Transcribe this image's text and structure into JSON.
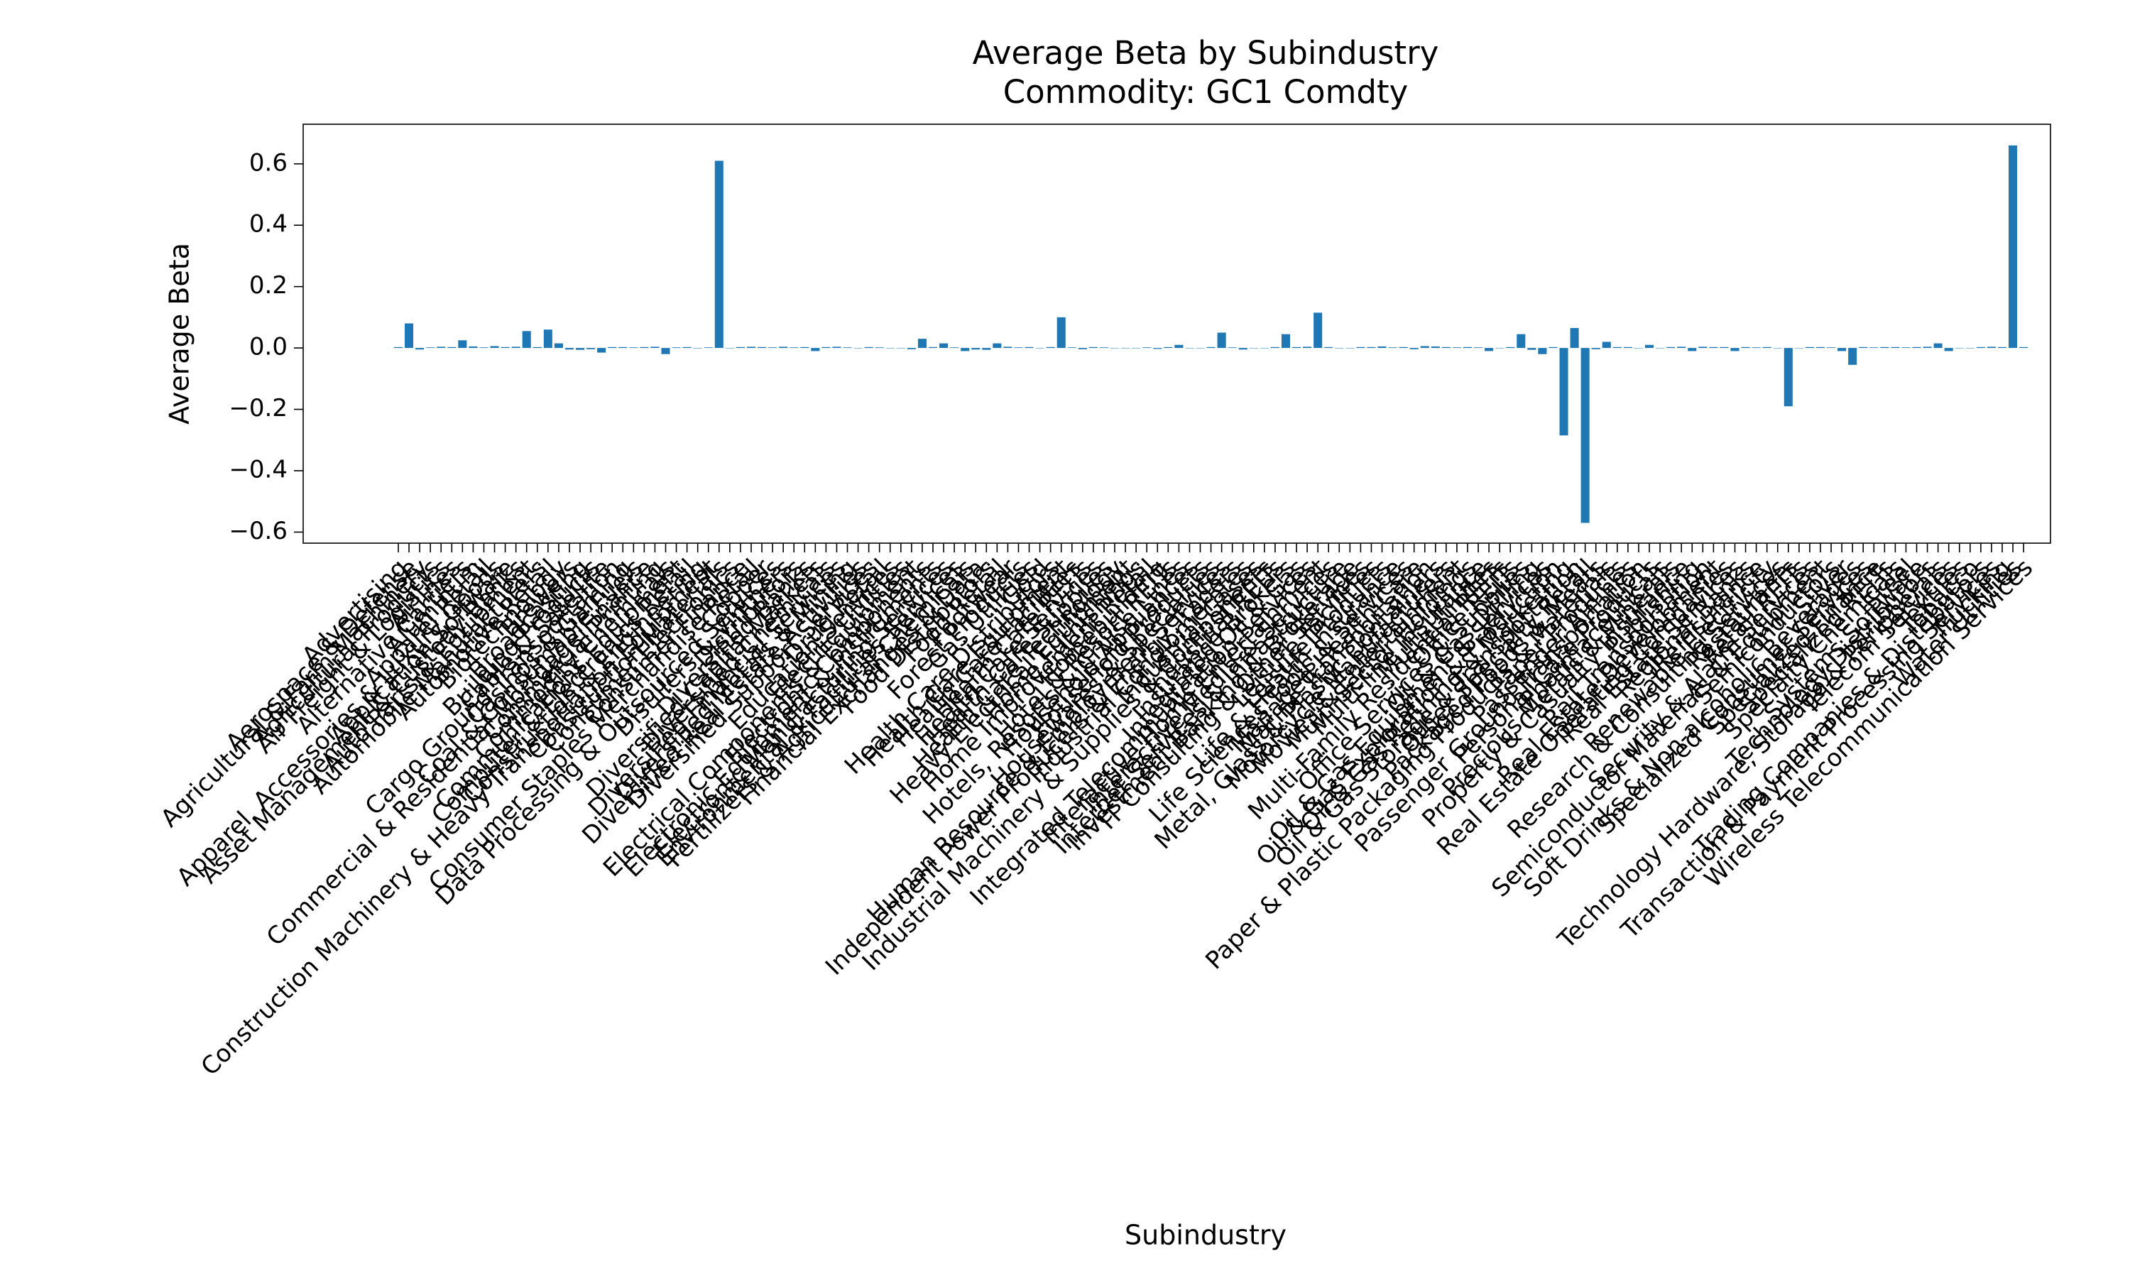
{
  "chart_data": {
    "type": "bar",
    "title": "Average Beta by Subindustry",
    "subtitle": "Commodity: GC1 Comdty",
    "x_label": "Subindustry",
    "y_label": "Average Beta",
    "color": "#1f77b4",
    "ylim": [
      -0.636,
      0.729
    ],
    "yticks": [
      {
        "value": -0.6,
        "label": "−0.6"
      },
      {
        "value": -0.4,
        "label": "−0.4"
      },
      {
        "value": -0.2,
        "label": "−0.2"
      },
      {
        "value": 0,
        "label": "0.0"
      },
      0.2,
      0.4,
      0.6
    ],
    "categories": [
      "Advertising",
      "Aerospace & Defense",
      "Agricultural & Farm Machinery",
      "Agricultural Products",
      "Air Freight & Logistics",
      "Airlines",
      "Alternative Carriers",
      "Aluminum",
      "Apparel Retail",
      "Apparel, Accessories & Luxury Goods",
      "Application Software",
      "Asset Management & Custody Banks",
      "Auto Parts & Equipment",
      "Automobile Manufacturers",
      "Automotive Retail",
      "Biotechnology",
      "Brewers",
      "Broadcasting",
      "Building Products",
      "Cable & Satellite",
      "Cargo Ground Transportation",
      "Casinos & Gaming",
      "Coal & Consumable Fuels",
      "Commercial & Residential Mortgage Finance",
      "Commercial Printing",
      "Commodity Chemicals",
      "Communications Equipment",
      "Computer & Electronics Retail",
      "Construction & Engineering",
      "Construction Machinery & Heavy Transportation Equipment",
      "Construction Materials",
      "Consumer Electronics",
      "Consumer Finance",
      "Consumer Staples Merchandise Retail",
      "Copper",
      "Data Processing & Outsourced Services",
      "Distillers & Vintners",
      "Distributors",
      "Diversified Banks",
      "Diversified Capital Markets",
      "Diversified Chemicals",
      "Diversified Financial Services",
      "Diversified Metals & Mining",
      "Diversified Real Estate Activities",
      "Diversified Support Services",
      "Drug Retail",
      "Education Services",
      "Electric Utilities",
      "Electrical Components & Equipment",
      "Electronic Components",
      "Electronic Equipment & Instruments",
      "Electronic Manufacturing Services",
      "Environmental & Facilities Services",
      "Fertilizers & Agricultural Chemicals",
      "Financial Exchanges & Data",
      "Food Distributors",
      "Food Retail",
      "Footwear",
      "Forest Products",
      "Gas Utilities",
      "Gold",
      "Health Care Distributors",
      "Health Care Equipment",
      "Health Care Facilities",
      "Health Care REITs",
      "Health Care Services",
      "Health Care Supplies",
      "Health Care Technology",
      "Heavy Electrical Equipment",
      "Home Furnishings",
      "Home Improvement Retail",
      "Homebuilding",
      "Hotel & Resort REITs",
      "Hotels, Resorts & Cruise Lines",
      "Household Appliances",
      "Household Products",
      "Housewares & Specialties",
      "Human Resource & Employment Services",
      "Independent Power Producers & Energy Traders",
      "Industrial Conglomerates",
      "Industrial Gases",
      "Industrial Machinery & Supplies & Components",
      "Industrial REITs",
      "Insurance Brokers",
      "Integrated Oil & Gas",
      "Integrated Telecommunication Services",
      "Interactive Home Entertainment",
      "Interactive Media & Services",
      "Internet Services & Infrastructure",
      "Investment Banking & Brokerage",
      "IT Consulting & Other Services",
      "Leisure Facilities",
      "Leisure Products",
      "Life & Health Insurance",
      "Life Sciences Tools & Services",
      "Managed Health Care",
      "Marine Transportation",
      "Metal, Glass & Plastic Containers",
      "Motorcycle Manufacturers",
      "Movies & Entertainment",
      "Multi-Sector Holdings",
      "Multi-line Insurance",
      "Multi-Utilities",
      "Multi-Family Residential REITs",
      "Office REITs",
      "Office Services & Supplies",
      "Oil & Gas Drilling",
      "Oil & Gas Equipment & Services",
      "Oil & Gas Exploration & Production",
      "Oil & Gas Refining & Marketing",
      "Oil & Gas Storage & Transportation",
      "Other Specialty Retail",
      "Packaged Foods & Meats",
      "Paper & Plastic Packaging Products & Materials",
      "Paper Products",
      "Passenger Airlines",
      "Passenger Ground Transportation",
      "Personal Care Products",
      "Pharmaceuticals",
      "Precious Metals & Minerals",
      "Property & Casualty Insurance",
      "Publishing",
      "Rail Transportation",
      "Real Estate Development",
      "Real Estate Operating Companies",
      "Real Estate Services",
      "Regional Banks",
      "Reinsurance",
      "Renewable Electricity",
      "Research & Consulting Services",
      "Restaurants",
      "Retail REITs",
      "Security & Alarm Services",
      "Semiconductor Materials & Equipment",
      "Semiconductors",
      "Silver",
      "Soft Drinks & Non-alcoholic Beverages",
      "Specialized Consumer Services",
      "Specialized Finance",
      "Specialized REITs",
      "Specialty Chemicals",
      "Steel",
      "Systems Software",
      "Technology Distributors",
      "Technology Hardware, Storage & Peripherals",
      "Telecom Services",
      "Textiles",
      "Tobacco",
      "Trading Companies & Distributors",
      "Transaction & Payment Processing Services",
      "Trucking",
      "Water Utilities",
      "Wireless Telecommunication Services"
    ],
    "values": [
      0.003,
      0.08,
      -0.005,
      0.002,
      0.004,
      0.003,
      0.025,
      0.005,
      0.002,
      0.006,
      0.003,
      0.004,
      0.055,
      0.003,
      0.06,
      0.015,
      -0.005,
      -0.006,
      -0.004,
      -0.015,
      0.003,
      0.003,
      0.002,
      0.003,
      0.004,
      -0.02,
      0.002,
      0.003,
      0,
      0.002,
      0.61,
      0,
      0.003,
      0.004,
      0.003,
      0.002,
      0.004,
      0.002,
      0.003,
      -0.01,
      0.003,
      0.004,
      0.002,
      0,
      0.003,
      0.002,
      0,
      0,
      -0.004,
      0.03,
      0.003,
      0.015,
      0.002,
      -0.01,
      -0.005,
      -0.006,
      0.015,
      0.004,
      0.002,
      0.003,
      0,
      0.003,
      0.1,
      0.002,
      -0.004,
      0.003,
      0.002,
      0,
      0,
      0,
      0.002,
      -0.003,
      0.003,
      0.01,
      0,
      0,
      0.003,
      0.05,
      0.002,
      -0.005,
      0,
      0,
      0.003,
      0.045,
      0.003,
      0.004,
      0.115,
      0.003,
      0,
      0,
      0.003,
      0.003,
      0.005,
      0.002,
      0.003,
      -0.004,
      0.006,
      0.005,
      0.003,
      0.002,
      0.003,
      0.002,
      -0.01,
      0,
      0.003,
      0.045,
      -0.006,
      -0.02,
      0.003,
      -0.285,
      0.065,
      -0.57,
      -0.004,
      0.02,
      0.003,
      0.003,
      0,
      0.01,
      0,
      0.003,
      0.004,
      -0.01,
      0.004,
      0.003,
      0.003,
      -0.01,
      0.003,
      0.002,
      0.003,
      0,
      -0.19,
      0,
      0.003,
      0.003,
      0.002,
      -0.01,
      -0.055,
      0.003,
      0.002,
      0.003,
      0.003,
      0.002,
      0.003,
      0.004,
      0.015,
      -0.01,
      0,
      0,
      0.003,
      0.004,
      0.003,
      0.66,
      0.003
    ]
  }
}
